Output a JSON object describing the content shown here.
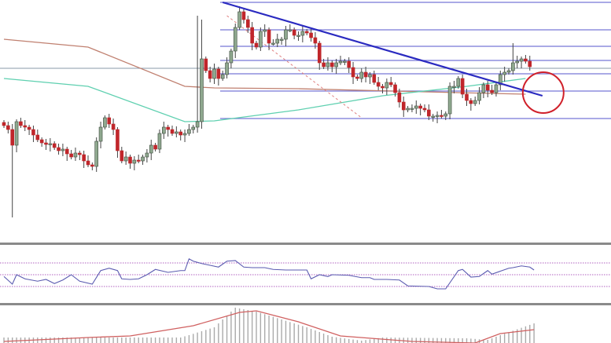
{
  "chart_data": [
    {
      "type": "candlestick",
      "ylim": [
        0,
        300
      ],
      "colors": {
        "up": "#8fa88f",
        "up_border": "#3c4a3c",
        "down": "#c0262b",
        "wick": "#444444"
      },
      "close": [
        140,
        135,
        115,
        145,
        140,
        138,
        135,
        128,
        122,
        118,
        116,
        117,
        112,
        108,
        110,
        104,
        100,
        105,
        103,
        95,
        90,
        88,
        120,
        138,
        150,
        142,
        135,
        108,
        95,
        100,
        92,
        96,
        95,
        100,
        105,
        115,
        110,
        130,
        138,
        135,
        130,
        132,
        128,
        130,
        135,
        138,
        145,
        225,
        210,
        200,
        212,
        200,
        205,
        220,
        235,
        265,
        285,
        275,
        265,
        245,
        240,
        260,
        262,
        245,
        245,
        250,
        250,
        262,
        262,
        255,
        255,
        260,
        258,
        252,
        245,
        220,
        215,
        220,
        215,
        220,
        222,
        222,
        214,
        202,
        200,
        208,
        202,
        205,
        195,
        190,
        188,
        195,
        192,
        182,
        170,
        160,
        162,
        162,
        165,
        162,
        160,
        152,
        152,
        153,
        152,
        155,
        190,
        190,
        200,
        180,
        172,
        168,
        172,
        182,
        192,
        185,
        182,
        192,
        205,
        208,
        210,
        220,
        222,
        225,
        222,
        215
      ],
      "long_wicks": [
        {
          "index": 2,
          "low": 23
        },
        {
          "index": 46,
          "high": 280
        },
        {
          "index": 47,
          "high": 275
        },
        {
          "index": 121,
          "high": 245
        }
      ],
      "moving_averages": [
        {
          "color": "#c08070",
          "points": [
            [
              0,
              250
            ],
            [
              20,
              240
            ],
            [
              43,
              190
            ],
            [
              50,
              188
            ],
            [
              70,
              187
            ],
            [
              100,
              183
            ],
            [
              124,
              180
            ]
          ]
        },
        {
          "color": "#5fd0b0",
          "points": [
            [
              0,
              200
            ],
            [
              20,
              190
            ],
            [
              43,
              145
            ],
            [
              50,
              146
            ],
            [
              70,
              160
            ],
            [
              90,
              178
            ],
            [
              110,
              190
            ],
            [
              124,
              200
            ]
          ]
        }
      ],
      "horizontal_levels": {
        "color": "#5555cc",
        "values": [
          297,
          262,
          241,
          223,
          206,
          184,
          149
        ]
      },
      "reference_line": {
        "color": "#8899aa",
        "value": 213
      },
      "trendline": {
        "color": "#2a2ac0",
        "from": [
          52,
          297
        ],
        "to": [
          128,
          178
        ]
      },
      "dotted_line": {
        "color": "#e08080",
        "from": [
          53,
          280
        ],
        "to": [
          85,
          150
        ]
      },
      "highlight_circle": {
        "color": "#d0202a",
        "index": 128,
        "value": 182
      }
    },
    {
      "type": "line",
      "ylim": [
        0,
        100
      ],
      "levels": [
        70,
        50,
        30
      ],
      "level_color": "#b060c0",
      "line_color": "#5a5ab0",
      "points": [
        [
          0,
          47
        ],
        [
          2,
          34
        ],
        [
          3,
          50
        ],
        [
          5,
          43
        ],
        [
          8,
          39
        ],
        [
          10,
          42
        ],
        [
          12,
          35
        ],
        [
          14,
          41
        ],
        [
          16,
          50
        ],
        [
          18,
          39
        ],
        [
          21,
          34
        ],
        [
          23,
          57
        ],
        [
          25,
          61
        ],
        [
          27,
          57
        ],
        [
          28,
          43
        ],
        [
          30,
          42
        ],
        [
          32,
          43
        ],
        [
          34,
          50
        ],
        [
          36,
          59
        ],
        [
          39,
          54
        ],
        [
          42,
          57
        ],
        [
          43,
          57
        ],
        [
          44,
          77
        ],
        [
          45,
          73
        ],
        [
          47,
          69
        ],
        [
          49,
          66
        ],
        [
          51,
          63
        ],
        [
          53,
          73
        ],
        [
          55,
          74
        ],
        [
          57,
          63
        ],
        [
          59,
          62
        ],
        [
          62,
          62
        ],
        [
          64,
          59
        ],
        [
          67,
          58
        ],
        [
          72,
          58
        ],
        [
          73,
          43
        ],
        [
          75,
          50
        ],
        [
          77,
          47
        ],
        [
          78,
          50
        ],
        [
          82,
          49
        ],
        [
          85,
          45
        ],
        [
          87,
          45
        ],
        [
          88,
          42
        ],
        [
          91,
          42
        ],
        [
          94,
          41
        ],
        [
          96,
          31
        ],
        [
          101,
          30
        ],
        [
          103,
          26
        ],
        [
          105,
          26
        ],
        [
          108,
          57
        ],
        [
          109,
          59
        ],
        [
          111,
          46
        ],
        [
          113,
          47
        ],
        [
          115,
          57
        ],
        [
          116,
          51
        ],
        [
          120,
          61
        ],
        [
          121,
          62
        ],
        [
          123,
          65
        ],
        [
          125,
          63
        ],
        [
          126,
          58
        ]
      ]
    },
    {
      "type": "bar",
      "histogram_color": "#aaaaaa",
      "signal_color": "#d06060",
      "histogram": [
        [
          0,
          7
        ],
        [
          20,
          7
        ],
        [
          42,
          7
        ],
        [
          44,
          10
        ],
        [
          50,
          20
        ],
        [
          55,
          45
        ],
        [
          60,
          40
        ],
        [
          66,
          30
        ],
        [
          72,
          20
        ],
        [
          78,
          8
        ],
        [
          85,
          3
        ],
        [
          90,
          7
        ],
        [
          110,
          6
        ],
        [
          115,
          4
        ],
        [
          118,
          10
        ],
        [
          126,
          25
        ]
      ],
      "signal": [
        [
          0,
          2
        ],
        [
          20,
          7
        ],
        [
          30,
          9
        ],
        [
          45,
          22
        ],
        [
          56,
          39
        ],
        [
          60,
          41
        ],
        [
          70,
          27
        ],
        [
          80,
          9
        ],
        [
          97,
          2
        ],
        [
          112,
          0
        ],
        [
          118,
          12
        ],
        [
          126,
          17
        ]
      ]
    }
  ]
}
